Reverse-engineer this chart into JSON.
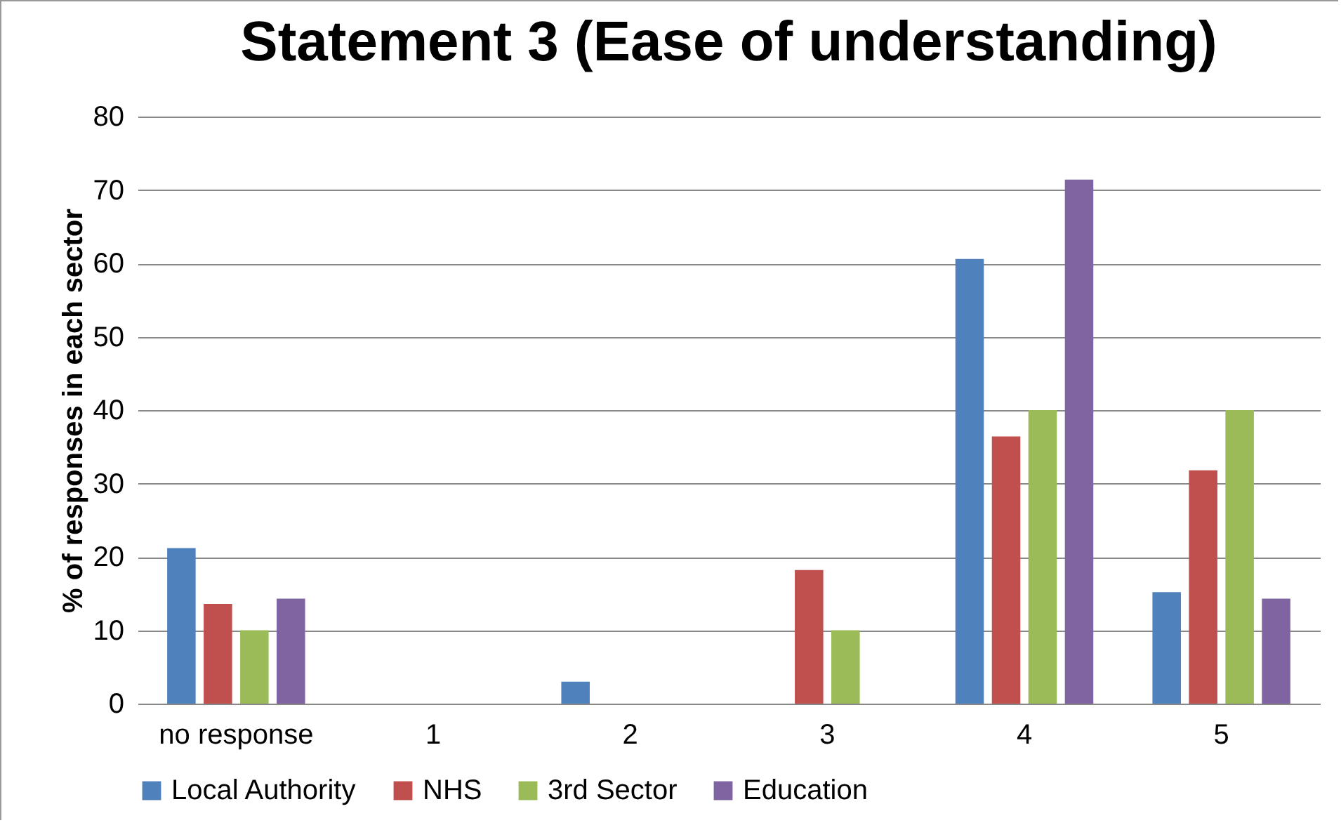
{
  "chart_data": {
    "type": "bar",
    "title": "Statement 3 (Ease of understanding)",
    "ylabel": "% of responses in each sector",
    "categories": [
      "no response",
      "1",
      "2",
      "3",
      "4",
      "5"
    ],
    "series": [
      {
        "name": "Local Authority",
        "color": "#4f81bd",
        "values": [
          21.2,
          0,
          3,
          0,
          60.6,
          15.2
        ]
      },
      {
        "name": "NHS",
        "color": "#c0504d",
        "values": [
          13.6,
          0,
          0,
          18.2,
          36.4,
          31.8
        ]
      },
      {
        "name": "3rd Sector",
        "color": "#9bbb59",
        "values": [
          10,
          0,
          0,
          10,
          40,
          40
        ]
      },
      {
        "name": "Education",
        "color": "#8064a2",
        "values": [
          14.3,
          0,
          0,
          0,
          71.4,
          14.3
        ]
      }
    ],
    "ylim": [
      0,
      80
    ],
    "yticks": [
      0,
      10,
      20,
      30,
      40,
      50,
      60,
      70,
      80
    ],
    "grid": "y",
    "legend": "bottom"
  }
}
